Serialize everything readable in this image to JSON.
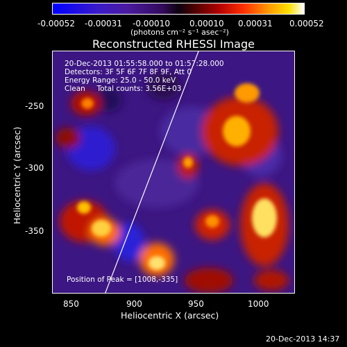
{
  "colorbar": {
    "ticks": [
      "-0.00052",
      "-0.00031",
      "-0.00010",
      "0.00010",
      "0.00031",
      "0.00052"
    ],
    "unit_label": "(photons cm⁻² s⁻¹ asec⁻²)"
  },
  "title": "Reconstructed RHESSI Image",
  "overlay": {
    "line1": "20-Dec-2013 01:55:58.000 to 01:57:28.000",
    "line2": "Detectors: 3F 5F 6F 7F 8F 9F, Att 0",
    "line3": "Energy Range: 25.0 - 50.0 keV",
    "line4": "Clean     Total counts: 3.56E+03",
    "peak": "Position of Peak = [1008,-335]"
  },
  "axes": {
    "xlabel": "Heliocentric X (arcsec)",
    "ylabel": "Heliocentric Y (arcsec)",
    "xticks": [
      "850",
      "900",
      "950",
      "1000"
    ],
    "yticks": [
      "-250",
      "-300",
      "-350"
    ]
  },
  "timestamp": "20-Dec-2013 14:37",
  "colors": {
    "background": "#000000",
    "text": "#ffffff",
    "limb_line": "#ffffff"
  }
}
